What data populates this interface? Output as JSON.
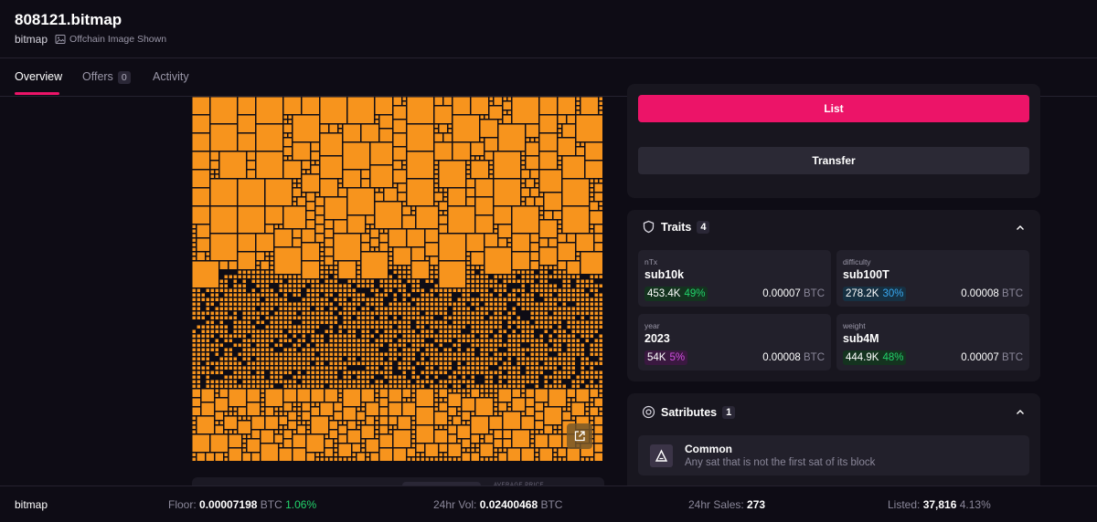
{
  "header": {
    "title": "808121.bitmap",
    "collection": "bitmap",
    "offchain_label": "Offchain Image Shown"
  },
  "tabs": [
    {
      "label": "Overview",
      "active": true
    },
    {
      "label": "Offers",
      "badge": "0"
    },
    {
      "label": "Activity"
    }
  ],
  "actions": {
    "list_label": "List",
    "transfer_label": "Transfer"
  },
  "strip": {
    "label": "AVERAGE PRICE"
  },
  "traits": {
    "label": "Traits",
    "count": "4",
    "items": [
      {
        "type": "nTx",
        "value": "sub10k",
        "count": "453.4K",
        "pct": "49%",
        "price": "0.00007",
        "currency": "BTC"
      },
      {
        "type": "difficulty",
        "value": "sub100T",
        "count": "278.2K",
        "pct": "30%",
        "price": "0.00008",
        "currency": "BTC"
      },
      {
        "type": "year",
        "value": "2023",
        "count": "54K",
        "pct": "5%",
        "price": "0.00008",
        "currency": "BTC"
      },
      {
        "type": "weight",
        "value": "sub4M",
        "count": "444.9K",
        "pct": "48%",
        "price": "0.00007",
        "currency": "BTC"
      }
    ]
  },
  "satributes": {
    "label": "Satributes",
    "count": "1",
    "items": [
      {
        "name": "Common",
        "description": "Any sat that is not the first sat of its block"
      }
    ]
  },
  "footer": {
    "collection": "bitmap",
    "floor_label": "Floor:",
    "floor_value": "0.00007198",
    "floor_currency": "BTC",
    "floor_change": "1.06%",
    "vol_label": "24hr Vol:",
    "vol_value": "0.02400468",
    "vol_currency": "BTC",
    "sales_label": "24hr Sales:",
    "sales_value": "273",
    "listed_label": "Listed:",
    "listed_value": "37,816",
    "listed_pct": "4.13%"
  },
  "colors": {
    "accent": "#ec1468",
    "bitmap_fill": "#f7941d",
    "background": "#0e0c15",
    "panel": "#18161f",
    "positive": "#22d36b"
  }
}
